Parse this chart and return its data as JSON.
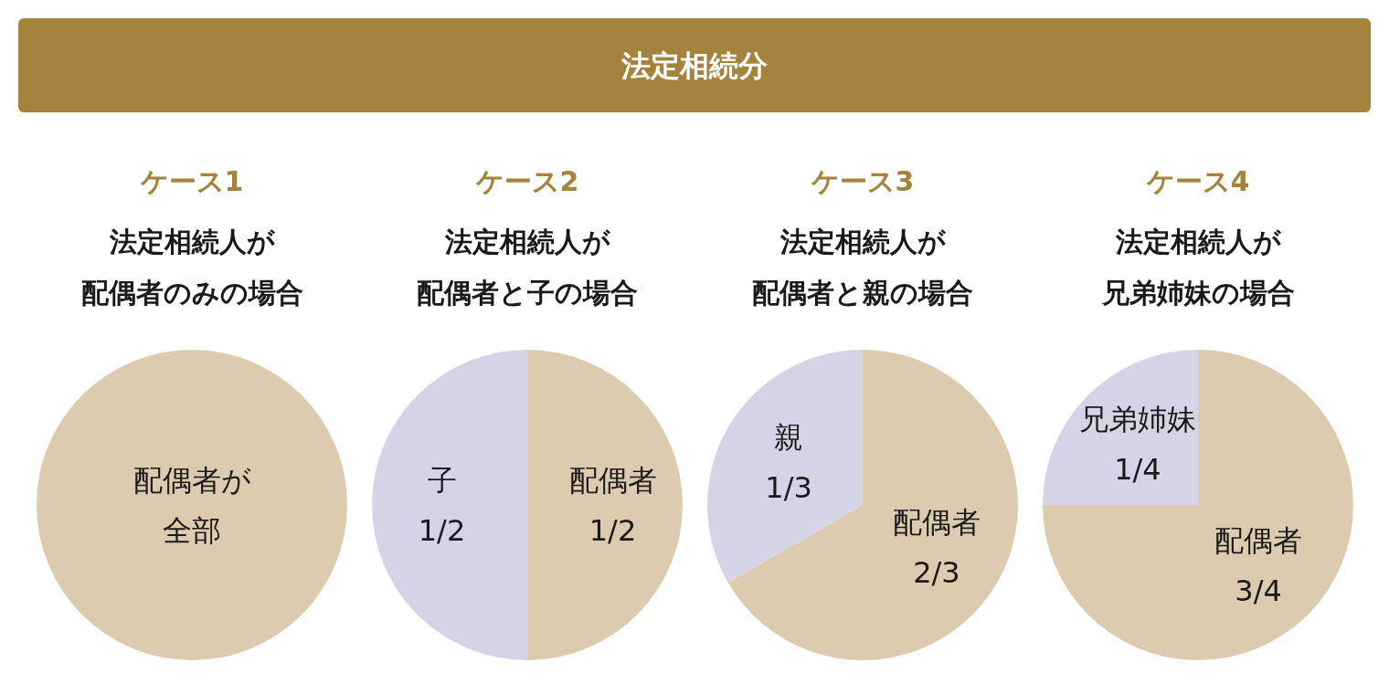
{
  "chart_data": [
    {
      "type": "other",
      "title": "法定相続分",
      "color": "#a6833c"
    },
    {
      "type": "pie",
      "title": "ケース1",
      "subtitle": "法定相続人が配偶者のみの場合",
      "categories": [
        "配偶者が全部"
      ],
      "values": [
        1
      ],
      "colors": [
        "#dccbaf"
      ],
      "value_labels": [
        null
      ]
    },
    {
      "type": "pie",
      "title": "ケース2",
      "subtitle": "法定相続人が配偶者と子の場合",
      "categories": [
        "配偶者",
        "子"
      ],
      "values": [
        0.5,
        0.5
      ],
      "colors": [
        "#dccbaf",
        "#d5d4e6"
      ],
      "value_labels": [
        "1/2",
        "1/2"
      ]
    },
    {
      "type": "pie",
      "title": "ケース3",
      "subtitle": "法定相続人が配偶者と親の場合",
      "categories": [
        "配偶者",
        "親"
      ],
      "values": [
        0.6667,
        0.3333
      ],
      "colors": [
        "#dccbaf",
        "#d5d4e6"
      ],
      "value_labels": [
        "2/3",
        "1/3"
      ]
    },
    {
      "type": "pie",
      "title": "ケース4",
      "subtitle": "法定相続人が兄弟姉妹の場合",
      "categories": [
        "配偶者",
        "兄弟姉妹"
      ],
      "values": [
        0.75,
        0.25
      ],
      "colors": [
        "#dccbaf",
        "#d5d4e6"
      ],
      "value_labels": [
        "3/4",
        "1/4"
      ]
    }
  ]
}
